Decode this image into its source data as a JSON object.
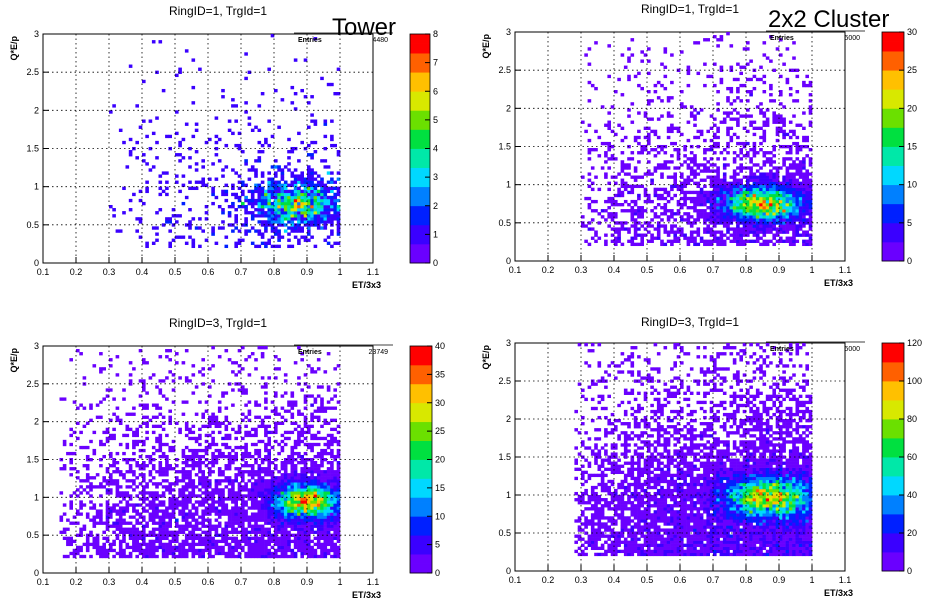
{
  "labels": {
    "left_column": "Tower",
    "right_column": "2x2 Cluster"
  },
  "palette": [
    "#6a00ff",
    "#3a00ff",
    "#0020ff",
    "#0080ff",
    "#00d8ff",
    "#00e8a8",
    "#00e040",
    "#6be000",
    "#d8e800",
    "#ffc000",
    "#ff6000",
    "#ff0000"
  ],
  "chart_data": [
    {
      "type": "heatmap",
      "title": "RingID=1, TrgId=1",
      "xlabel": "ET/3x3",
      "ylabel": "Q*E/p",
      "xlim": [
        0.1,
        1.1
      ],
      "ylim": [
        0,
        3
      ],
      "xticks": [
        "0.1",
        "0.2",
        "0.3",
        "0.4",
        "0.5",
        "0.6",
        "0.7",
        "0.8",
        "0.9",
        "1",
        "1.1"
      ],
      "yticks": [
        "0",
        "0.5",
        "1",
        "1.5",
        "2",
        "2.5",
        "3"
      ],
      "stats_label": "Entries",
      "stats_value": "4480",
      "zmax": 8,
      "zticks": [
        "0",
        "1",
        "2",
        "3",
        "4",
        "5",
        "6",
        "7",
        "8"
      ],
      "grid": true,
      "seed": 11,
      "n_points": 1700,
      "peak": {
        "x": 0.87,
        "y": 0.78,
        "sx": 0.075,
        "sy": 0.16
      },
      "background_fraction": 0.35,
      "xmin_data": 0.3,
      "xmax_data": 1.0
    },
    {
      "type": "heatmap",
      "title": "RingID=1, TrgId=1",
      "xlabel": "ET/3x3",
      "ylabel": "Q*E/p",
      "xlim": [
        0.1,
        1.1
      ],
      "ylim": [
        0,
        3
      ],
      "xticks": [
        "0.1",
        "0.2",
        "0.3",
        "0.4",
        "0.5",
        "0.6",
        "0.7",
        "0.8",
        "0.9",
        "1",
        "1.1"
      ],
      "yticks": [
        "0",
        "0.5",
        "1",
        "1.5",
        "2",
        "2.5",
        "3"
      ],
      "stats_label": "Entries",
      "stats_value": "6000",
      "zmax": 30,
      "zticks": [
        "0",
        "5",
        "10",
        "15",
        "20",
        "25",
        "30"
      ],
      "grid": true,
      "seed": 23,
      "n_points": 6000,
      "peak": {
        "x": 0.85,
        "y": 0.75,
        "sx": 0.07,
        "sy": 0.14
      },
      "background_fraction": 0.32,
      "xmin_data": 0.3,
      "xmax_data": 1.0
    },
    {
      "type": "heatmap",
      "title": "RingID=3, TrgId=1",
      "xlabel": "ET/3x3",
      "ylabel": "Q*E/p",
      "xlim": [
        0.1,
        1.1
      ],
      "ylim": [
        0,
        3
      ],
      "xticks": [
        "0.1",
        "0.2",
        "0.3",
        "0.4",
        "0.5",
        "0.6",
        "0.7",
        "0.8",
        "0.9",
        "1",
        "1.1"
      ],
      "yticks": [
        "0",
        "0.5",
        "1",
        "1.5",
        "2",
        "2.5",
        "3"
      ],
      "stats_label": "Entries",
      "stats_value": "23749",
      "zmax": 40,
      "zticks": [
        "0",
        "5",
        "10",
        "15",
        "20",
        "25",
        "30",
        "35",
        "40"
      ],
      "grid": true,
      "seed": 37,
      "n_points": 9000,
      "peak": {
        "x": 0.9,
        "y": 0.95,
        "sx": 0.06,
        "sy": 0.14
      },
      "background_fraction": 0.45,
      "xmin_data": 0.15,
      "xmax_data": 1.0
    },
    {
      "type": "heatmap",
      "title": "RingID=3, TrgId=1",
      "xlabel": "ET/3x3",
      "ylabel": "Q*E/p",
      "xlim": [
        0.1,
        1.1
      ],
      "ylim": [
        0,
        3
      ],
      "xticks": [
        "0.1",
        "0.2",
        "0.3",
        "0.4",
        "0.5",
        "0.6",
        "0.7",
        "0.8",
        "0.9",
        "1",
        "1.1"
      ],
      "yticks": [
        "0",
        "0.5",
        "1",
        "1.5",
        "2",
        "2.5",
        "3"
      ],
      "stats_label": "Entries",
      "stats_value": "6000",
      "zmax": 120,
      "zticks": [
        "0",
        "20",
        "40",
        "60",
        "80",
        "100",
        "120"
      ],
      "grid": true,
      "seed": 51,
      "n_points": 12000,
      "peak": {
        "x": 0.87,
        "y": 0.98,
        "sx": 0.08,
        "sy": 0.16
      },
      "background_fraction": 0.5,
      "xmin_data": 0.28,
      "xmax_data": 1.0
    }
  ]
}
